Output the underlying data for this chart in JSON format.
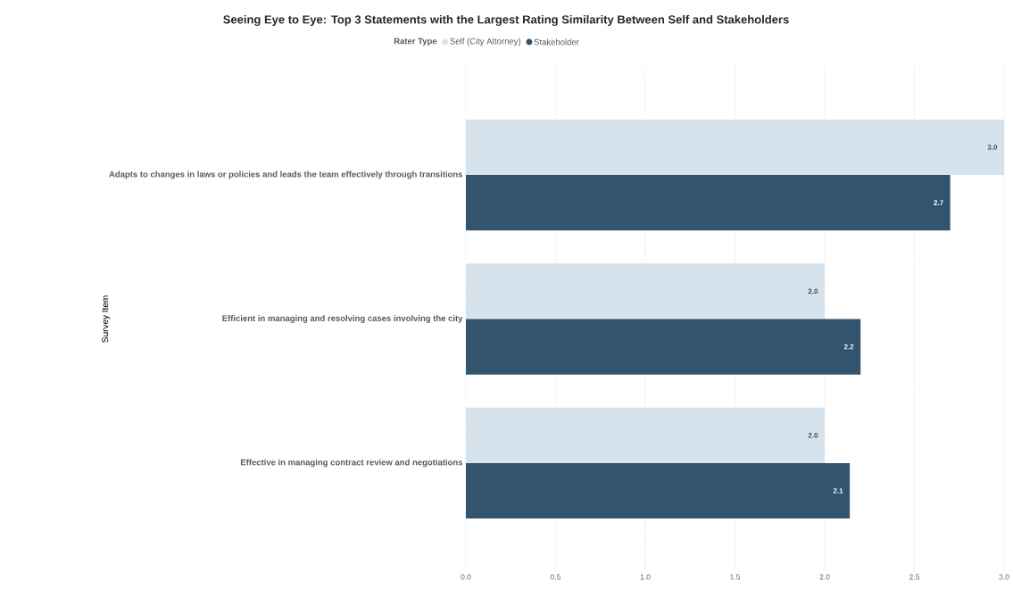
{
  "chart_data": {
    "type": "bar",
    "orientation": "horizontal",
    "title": "Seeing Eye to Eye: Top 3 Statements with the Largest Rating Similarity Between Self and Stakeholders",
    "ylabel": "Survey Item",
    "legend_title": "Rater Type",
    "legend": "top",
    "categories": [
      "Adapts to changes in laws or policies and leads the team effectively through transitions",
      "Efficient in managing and resolving cases involving the city",
      "Effective in managing contract review and negotiations"
    ],
    "series": [
      {
        "name": "Self (City Attorney)",
        "color": "#d6e3ed",
        "values": [
          3.0,
          2.0,
          2.0
        ],
        "value_labels": [
          "3.0",
          "2.0",
          "2.0"
        ]
      },
      {
        "name": "Stakeholder",
        "color": "#32546f",
        "values": [
          2.7,
          2.2,
          2.14
        ],
        "value_labels": [
          "2.7",
          "2.2",
          "2.1"
        ]
      }
    ],
    "xlim": [
      0,
      3
    ],
    "xticks": [
      {
        "value": 0,
        "label": "0.0"
      },
      {
        "value": 0.5,
        "label": "0.5"
      },
      {
        "value": 1,
        "label": "1.0"
      },
      {
        "value": 1.5,
        "label": "1.5"
      },
      {
        "value": 2,
        "label": "2.0"
      },
      {
        "value": 2.5,
        "label": "2.5"
      },
      {
        "value": 3,
        "label": "3.0"
      }
    ],
    "grid": "x"
  }
}
